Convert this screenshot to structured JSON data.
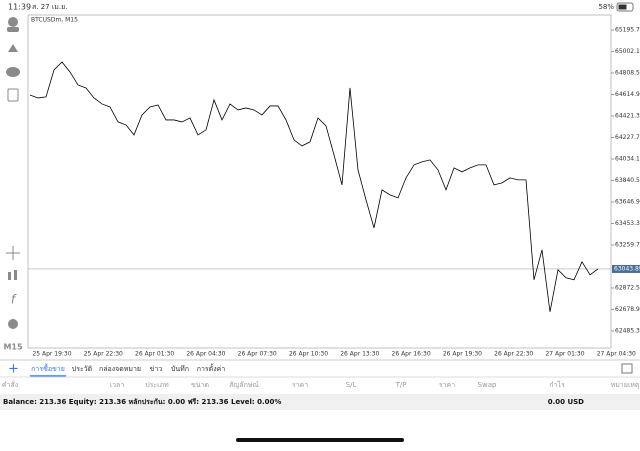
{
  "status_bar": {
    "time": "11:39",
    "date": "ส. 27 เม.ย.",
    "battery": "58%"
  },
  "timeframe": "M15",
  "chart": {
    "type": "line",
    "symbol": "BTCUSDm, M15",
    "color": "#000000",
    "values": [
      64611,
      64584,
      64593,
      64836,
      64908,
      64818,
      64701,
      64674,
      64584,
      64530,
      64503,
      64368,
      64341,
      64251,
      64431,
      64503,
      64521,
      64386,
      64386,
      64368,
      64404,
      64251,
      64296,
      64566,
      64386,
      64530,
      64476,
      64494,
      64476,
      64431,
      64512,
      64512,
      64386,
      64206,
      64152,
      64188,
      64404,
      64332,
      64071,
      63801,
      64674,
      63936,
      63666,
      63414,
      63756,
      63711,
      63684,
      63864,
      63981,
      64008,
      64026,
      63936,
      63756,
      63954,
      63918,
      63954,
      63981,
      63981,
      63801,
      63819,
      63864,
      63846,
      63846,
      62946,
      63216,
      62658,
      63036,
      62964,
      62946,
      63108,
      62991,
      63044
    ],
    "ylim": [
      62332,
      65331
    ],
    "yticks": [
      {
        "value": 65195.7,
        "label": "65195.70"
      },
      {
        "value": 65002.1,
        "label": "65002.10"
      },
      {
        "value": 64808.5,
        "label": "64808.50"
      },
      {
        "value": 64614.9,
        "label": "64614.90"
      },
      {
        "value": 64421.3,
        "label": "64421.30"
      },
      {
        "value": 64227.7,
        "label": "64227.70"
      },
      {
        "value": 64034.1,
        "label": "64034.10"
      },
      {
        "value": 63840.5,
        "label": "63840.50"
      },
      {
        "value": 63646.9,
        "label": "63646.90"
      },
      {
        "value": 63453.3,
        "label": "63453.30"
      },
      {
        "value": 63259.7,
        "label": "63259.70"
      },
      {
        "value": 62872.5,
        "label": "62872.50"
      },
      {
        "value": 62678.9,
        "label": "62678.90"
      },
      {
        "value": 62485.3,
        "label": "62485.30"
      }
    ],
    "current_price": 63043.89,
    "x_labels": [
      "25 Apr 19:30",
      "25 Apr 22:30",
      "26 Apr 01:30",
      "26 Apr 04:30",
      "26 Apr 07:30",
      "26 Apr 10:30",
      "26 Apr 13:30",
      "26 Apr 16:30",
      "26 Apr 19:30",
      "26 Apr 22:30",
      "27 Apr 01:30",
      "27 Apr 04:30"
    ]
  },
  "tabs": [
    "การซื้อขาย",
    "ประวัติ",
    "กล่องจดหมาย",
    "ข่าว",
    "บันทึก",
    "การตั้งค่า"
  ],
  "columns": [
    "คำสั่ง",
    "เวลา",
    "ประเภท",
    "ขนาด",
    "สัญลักษณ์",
    "ราคา",
    "S/L",
    "T/P",
    "ราคา",
    "Swap",
    "กำไร",
    "หมายเหตุ"
  ],
  "summary": {
    "text": "Balance: 213.36 Equity: 213.36 หลักประกัน: 0.00 ฟรี: 213.36 Level: 0.00%",
    "profit": "0.00 USD"
  }
}
